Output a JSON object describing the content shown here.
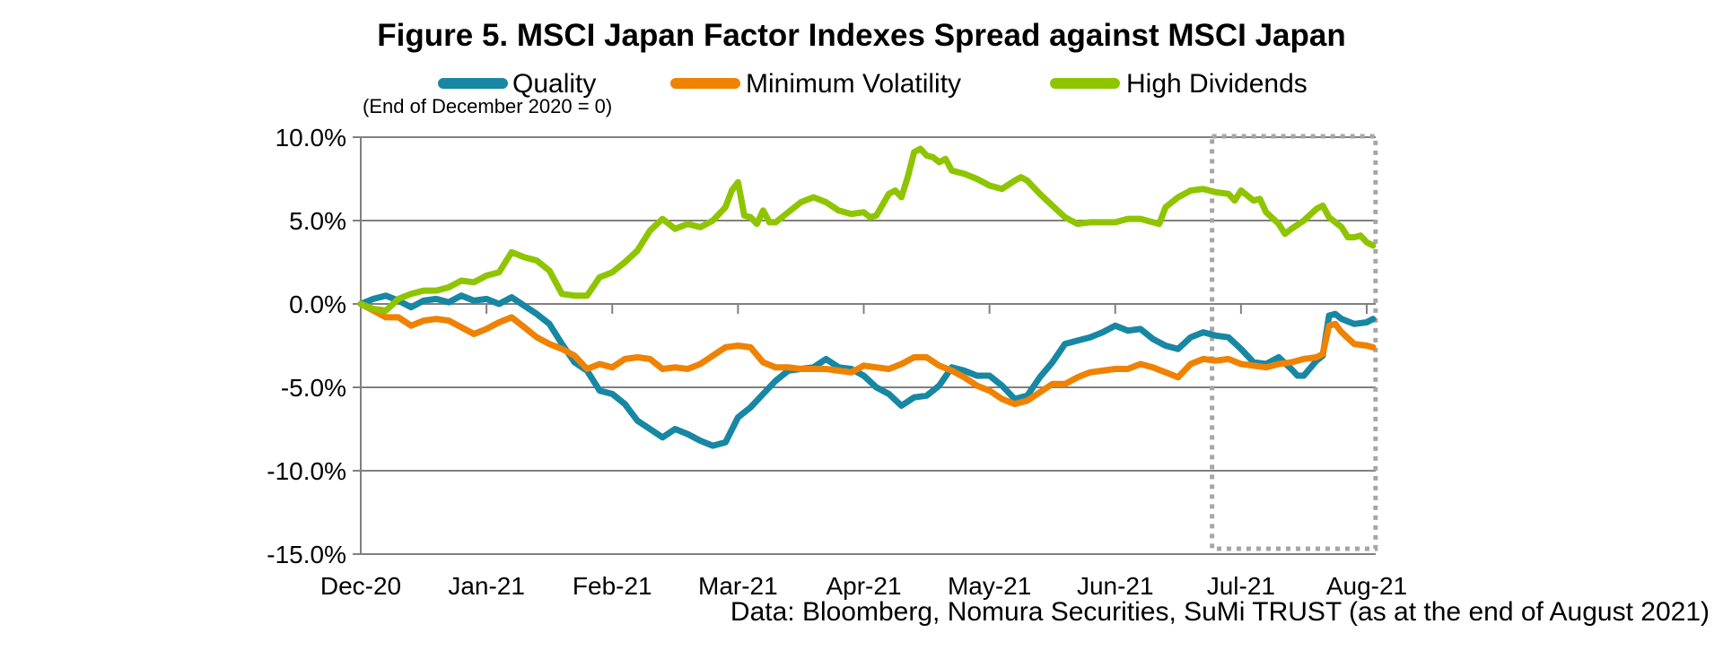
{
  "figure": {
    "title": "Figure 5. MSCI Japan Factor Indexes Spread against MSCI Japan",
    "note": "(End of December 2020 = 0)",
    "source": "Data: Bloomberg, Nomura Securities, SuMi TRUST (as at the end of August 2021)"
  },
  "legend": [
    {
      "label": "Quality",
      "color": "#1787A3"
    },
    {
      "label": "Minimum Volatility",
      "color": "#EF8200"
    },
    {
      "label": "High Dividends",
      "color": "#8EC500"
    }
  ],
  "chart_data": {
    "type": "line",
    "title": "Figure 5. MSCI Japan Factor Indexes Spread against MSCI Japan",
    "baseline_note": "(End of December 2020 = 0)",
    "x_unit": "months since end of December 2020",
    "x_axis": {
      "tick_labels": [
        "Dec-20",
        "Jan-21",
        "Feb-21",
        "Mar-21",
        "Apr-21",
        "May-21",
        "Jun-21",
        "Jul-21",
        "Aug-21"
      ],
      "tick_months": [
        0,
        1,
        2,
        3,
        4,
        5,
        6,
        7,
        8
      ]
    },
    "y_axis": {
      "tick_values": [
        10,
        5,
        0,
        -5,
        -10,
        -15
      ],
      "tick_labels": [
        "10.0%",
        "5.0%",
        "0.0%",
        "-5.0%",
        "-10.0%",
        "-15.0%"
      ],
      "min": -15,
      "max": 10,
      "unit": "%"
    },
    "grid_on": true,
    "grid_color": "#808080",
    "axis_color": "#808080",
    "legend_position": "top",
    "highlight_box": {
      "x_from_month": 6.77,
      "x_to_month": 8.07,
      "style": "dotted",
      "color": "#A6A6A6"
    },
    "series": [
      {
        "name": "Quality",
        "color": "#1787A3",
        "points": [
          [
            0,
            0
          ],
          [
            0.1,
            0.3
          ],
          [
            0.2,
            0.5
          ],
          [
            0.3,
            0.2
          ],
          [
            0.4,
            -0.2
          ],
          [
            0.5,
            0.2
          ],
          [
            0.6,
            0.3
          ],
          [
            0.7,
            0.1
          ],
          [
            0.8,
            0.5
          ],
          [
            0.9,
            0.2
          ],
          [
            1.0,
            0.3
          ],
          [
            1.1,
            0.0
          ],
          [
            1.2,
            0.4
          ],
          [
            1.3,
            -0.1
          ],
          [
            1.4,
            -0.6
          ],
          [
            1.5,
            -1.2
          ],
          [
            1.6,
            -2.4
          ],
          [
            1.7,
            -3.5
          ],
          [
            1.8,
            -4.0
          ],
          [
            1.9,
            -5.2
          ],
          [
            2.0,
            -5.4
          ],
          [
            2.1,
            -6.0
          ],
          [
            2.2,
            -7.0
          ],
          [
            2.3,
            -7.5
          ],
          [
            2.4,
            -8.0
          ],
          [
            2.5,
            -7.5
          ],
          [
            2.6,
            -7.8
          ],
          [
            2.7,
            -8.2
          ],
          [
            2.8,
            -8.5
          ],
          [
            2.9,
            -8.3
          ],
          [
            3.0,
            -6.8
          ],
          [
            3.1,
            -6.2
          ],
          [
            3.2,
            -5.4
          ],
          [
            3.3,
            -4.6
          ],
          [
            3.4,
            -4.0
          ],
          [
            3.5,
            -3.9
          ],
          [
            3.6,
            -3.8
          ],
          [
            3.7,
            -3.3
          ],
          [
            3.8,
            -3.8
          ],
          [
            3.9,
            -3.9
          ],
          [
            4.0,
            -4.3
          ],
          [
            4.1,
            -5.0
          ],
          [
            4.2,
            -5.4
          ],
          [
            4.3,
            -6.1
          ],
          [
            4.4,
            -5.6
          ],
          [
            4.5,
            -5.5
          ],
          [
            4.6,
            -4.9
          ],
          [
            4.7,
            -3.8
          ],
          [
            4.8,
            -4.0
          ],
          [
            4.9,
            -4.3
          ],
          [
            5.0,
            -4.3
          ],
          [
            5.1,
            -4.9
          ],
          [
            5.2,
            -5.7
          ],
          [
            5.3,
            -5.5
          ],
          [
            5.4,
            -4.4
          ],
          [
            5.5,
            -3.5
          ],
          [
            5.6,
            -2.4
          ],
          [
            5.7,
            -2.2
          ],
          [
            5.8,
            -2.0
          ],
          [
            5.9,
            -1.7
          ],
          [
            6.0,
            -1.3
          ],
          [
            6.1,
            -1.6
          ],
          [
            6.2,
            -1.5
          ],
          [
            6.3,
            -2.1
          ],
          [
            6.4,
            -2.5
          ],
          [
            6.5,
            -2.7
          ],
          [
            6.6,
            -2.0
          ],
          [
            6.7,
            -1.7
          ],
          [
            6.8,
            -1.9
          ],
          [
            6.9,
            -2.0
          ],
          [
            7.0,
            -2.7
          ],
          [
            7.1,
            -3.5
          ],
          [
            7.2,
            -3.6
          ],
          [
            7.3,
            -3.2
          ],
          [
            7.4,
            -3.9
          ],
          [
            7.45,
            -4.3
          ],
          [
            7.5,
            -4.3
          ],
          [
            7.6,
            -3.4
          ],
          [
            7.65,
            -3.1
          ],
          [
            7.7,
            -0.7
          ],
          [
            7.75,
            -0.6
          ],
          [
            7.8,
            -0.9
          ],
          [
            7.9,
            -1.2
          ],
          [
            8.0,
            -1.1
          ],
          [
            8.05,
            -0.9
          ]
        ]
      },
      {
        "name": "Minimum Volatility",
        "color": "#EF8200",
        "points": [
          [
            0,
            0
          ],
          [
            0.1,
            -0.4
          ],
          [
            0.2,
            -0.8
          ],
          [
            0.3,
            -0.8
          ],
          [
            0.4,
            -1.3
          ],
          [
            0.5,
            -1.0
          ],
          [
            0.6,
            -0.9
          ],
          [
            0.7,
            -1.0
          ],
          [
            0.8,
            -1.4
          ],
          [
            0.9,
            -1.8
          ],
          [
            1.0,
            -1.5
          ],
          [
            1.1,
            -1.1
          ],
          [
            1.2,
            -0.8
          ],
          [
            1.3,
            -1.4
          ],
          [
            1.4,
            -2.0
          ],
          [
            1.5,
            -2.4
          ],
          [
            1.6,
            -2.7
          ],
          [
            1.7,
            -3.1
          ],
          [
            1.8,
            -3.9
          ],
          [
            1.9,
            -3.6
          ],
          [
            2.0,
            -3.8
          ],
          [
            2.1,
            -3.3
          ],
          [
            2.2,
            -3.2
          ],
          [
            2.3,
            -3.3
          ],
          [
            2.4,
            -3.9
          ],
          [
            2.5,
            -3.8
          ],
          [
            2.6,
            -3.9
          ],
          [
            2.7,
            -3.6
          ],
          [
            2.8,
            -3.1
          ],
          [
            2.9,
            -2.6
          ],
          [
            3.0,
            -2.5
          ],
          [
            3.1,
            -2.6
          ],
          [
            3.2,
            -3.5
          ],
          [
            3.3,
            -3.8
          ],
          [
            3.4,
            -3.8
          ],
          [
            3.5,
            -3.9
          ],
          [
            3.6,
            -3.9
          ],
          [
            3.7,
            -3.9
          ],
          [
            3.8,
            -4.0
          ],
          [
            3.9,
            -4.1
          ],
          [
            4.0,
            -3.7
          ],
          [
            4.1,
            -3.8
          ],
          [
            4.2,
            -3.9
          ],
          [
            4.3,
            -3.6
          ],
          [
            4.4,
            -3.2
          ],
          [
            4.5,
            -3.2
          ],
          [
            4.6,
            -3.7
          ],
          [
            4.7,
            -4.0
          ],
          [
            4.8,
            -4.4
          ],
          [
            4.9,
            -4.9
          ],
          [
            5.0,
            -5.2
          ],
          [
            5.1,
            -5.7
          ],
          [
            5.2,
            -6.0
          ],
          [
            5.3,
            -5.8
          ],
          [
            5.4,
            -5.3
          ],
          [
            5.5,
            -4.8
          ],
          [
            5.6,
            -4.8
          ],
          [
            5.7,
            -4.4
          ],
          [
            5.8,
            -4.1
          ],
          [
            5.9,
            -4.0
          ],
          [
            6.0,
            -3.9
          ],
          [
            6.1,
            -3.9
          ],
          [
            6.2,
            -3.6
          ],
          [
            6.3,
            -3.8
          ],
          [
            6.4,
            -4.1
          ],
          [
            6.5,
            -4.4
          ],
          [
            6.6,
            -3.6
          ],
          [
            6.7,
            -3.3
          ],
          [
            6.8,
            -3.4
          ],
          [
            6.9,
            -3.3
          ],
          [
            7.0,
            -3.6
          ],
          [
            7.1,
            -3.7
          ],
          [
            7.2,
            -3.8
          ],
          [
            7.3,
            -3.6
          ],
          [
            7.4,
            -3.5
          ],
          [
            7.5,
            -3.3
          ],
          [
            7.6,
            -3.2
          ],
          [
            7.65,
            -3.0
          ],
          [
            7.7,
            -1.3
          ],
          [
            7.75,
            -1.2
          ],
          [
            7.8,
            -1.7
          ],
          [
            7.9,
            -2.4
          ],
          [
            8.0,
            -2.5
          ],
          [
            8.05,
            -2.6
          ]
        ]
      },
      {
        "name": "High Dividends",
        "color": "#8EC500",
        "points": [
          [
            0,
            0
          ],
          [
            0.1,
            -0.3
          ],
          [
            0.2,
            -0.4
          ],
          [
            0.3,
            0.3
          ],
          [
            0.4,
            0.6
          ],
          [
            0.5,
            0.8
          ],
          [
            0.6,
            0.8
          ],
          [
            0.7,
            1.0
          ],
          [
            0.8,
            1.4
          ],
          [
            0.9,
            1.3
          ],
          [
            1.0,
            1.7
          ],
          [
            1.1,
            1.9
          ],
          [
            1.2,
            3.1
          ],
          [
            1.3,
            2.8
          ],
          [
            1.4,
            2.6
          ],
          [
            1.5,
            2.0
          ],
          [
            1.6,
            0.6
          ],
          [
            1.7,
            0.5
          ],
          [
            1.8,
            0.5
          ],
          [
            1.9,
            1.6
          ],
          [
            2.0,
            1.9
          ],
          [
            2.1,
            2.5
          ],
          [
            2.2,
            3.2
          ],
          [
            2.3,
            4.4
          ],
          [
            2.4,
            5.1
          ],
          [
            2.5,
            4.5
          ],
          [
            2.6,
            4.8
          ],
          [
            2.7,
            4.6
          ],
          [
            2.8,
            5.0
          ],
          [
            2.9,
            5.8
          ],
          [
            2.95,
            6.8
          ],
          [
            3.0,
            7.3
          ],
          [
            3.05,
            5.3
          ],
          [
            3.1,
            5.2
          ],
          [
            3.15,
            4.8
          ],
          [
            3.2,
            5.6
          ],
          [
            3.25,
            4.9
          ],
          [
            3.3,
            4.9
          ],
          [
            3.4,
            5.5
          ],
          [
            3.5,
            6.1
          ],
          [
            3.6,
            6.4
          ],
          [
            3.7,
            6.1
          ],
          [
            3.8,
            5.6
          ],
          [
            3.9,
            5.4
          ],
          [
            4.0,
            5.5
          ],
          [
            4.05,
            5.2
          ],
          [
            4.1,
            5.3
          ],
          [
            4.2,
            6.6
          ],
          [
            4.25,
            6.8
          ],
          [
            4.3,
            6.4
          ],
          [
            4.35,
            7.6
          ],
          [
            4.4,
            9.1
          ],
          [
            4.45,
            9.3
          ],
          [
            4.5,
            8.9
          ],
          [
            4.55,
            8.8
          ],
          [
            4.6,
            8.5
          ],
          [
            4.65,
            8.7
          ],
          [
            4.7,
            8.0
          ],
          [
            4.8,
            7.8
          ],
          [
            4.9,
            7.5
          ],
          [
            5.0,
            7.1
          ],
          [
            5.1,
            6.9
          ],
          [
            5.2,
            7.4
          ],
          [
            5.25,
            7.6
          ],
          [
            5.3,
            7.4
          ],
          [
            5.4,
            6.6
          ],
          [
            5.5,
            5.9
          ],
          [
            5.6,
            5.2
          ],
          [
            5.7,
            4.8
          ],
          [
            5.8,
            4.9
          ],
          [
            5.9,
            4.9
          ],
          [
            6.0,
            4.9
          ],
          [
            6.1,
            5.1
          ],
          [
            6.2,
            5.1
          ],
          [
            6.3,
            4.9
          ],
          [
            6.35,
            4.8
          ],
          [
            6.4,
            5.8
          ],
          [
            6.5,
            6.4
          ],
          [
            6.6,
            6.8
          ],
          [
            6.7,
            6.9
          ],
          [
            6.8,
            6.7
          ],
          [
            6.9,
            6.6
          ],
          [
            6.95,
            6.2
          ],
          [
            7.0,
            6.8
          ],
          [
            7.1,
            6.2
          ],
          [
            7.15,
            6.3
          ],
          [
            7.2,
            5.5
          ],
          [
            7.3,
            4.8
          ],
          [
            7.35,
            4.2
          ],
          [
            7.4,
            4.5
          ],
          [
            7.5,
            5.0
          ],
          [
            7.6,
            5.7
          ],
          [
            7.65,
            5.9
          ],
          [
            7.7,
            5.2
          ],
          [
            7.8,
            4.6
          ],
          [
            7.85,
            4.0
          ],
          [
            7.9,
            4.0
          ],
          [
            7.95,
            4.1
          ],
          [
            8.0,
            3.7
          ],
          [
            8.05,
            3.5
          ]
        ]
      }
    ]
  }
}
